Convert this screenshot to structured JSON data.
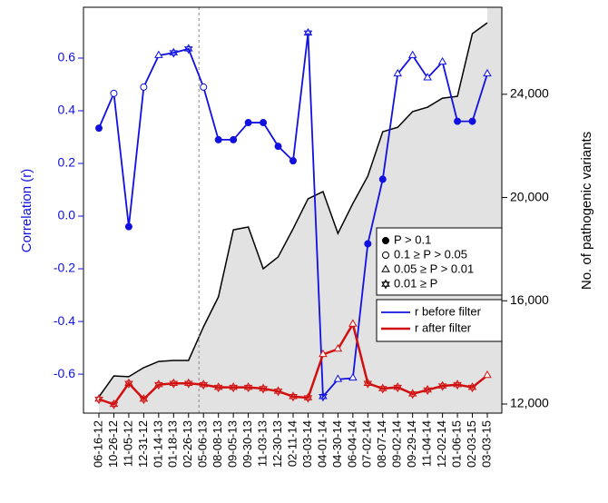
{
  "chart_data": {
    "type": "line",
    "ylabel": "Correlation (r)",
    "y2label": "No. of pathogenic variants",
    "categories": [
      "06-16-12",
      "10-26-12",
      "11-05-12",
      "12-31-12",
      "01-14-13",
      "01-18-13",
      "02-26-13",
      "05-06-13",
      "08-08-13",
      "09-05-13",
      "09-30-13",
      "11-03-13",
      "12-30-13",
      "02-11-14",
      "03-03-14",
      "04-01-14",
      "04-30-14",
      "06-04-14",
      "07-02-14",
      "08-07-14",
      "09-02-14",
      "09-29-14",
      "11-04-14",
      "12-02-14",
      "01-06-15",
      "02-03-15",
      "03-03-15"
    ],
    "vline_at": "05-06-13",
    "series": [
      {
        "name": "r before filter",
        "color": "#1010e0",
        "axis": "y",
        "values": [
          0.334,
          0.466,
          -0.04,
          0.49,
          0.61,
          0.62,
          0.635,
          0.49,
          0.29,
          0.29,
          0.355,
          0.355,
          0.265,
          0.21,
          0.695,
          -0.685,
          -0.62,
          -0.615,
          -0.105,
          0.14,
          0.54,
          0.61,
          0.525,
          0.585,
          0.36,
          0.36,
          0.54
        ],
        "markers": [
          "dot",
          "circle",
          "dot",
          "circle",
          "triangle",
          "star",
          "star",
          "circle",
          "dot",
          "dot",
          "dot",
          "dot",
          "dot",
          "dot",
          "star",
          "star",
          "triangle",
          "triangle",
          "dot",
          "dot",
          "triangle",
          "triangle",
          "triangle",
          "triangle",
          "dot",
          "dot",
          "triangle"
        ]
      },
      {
        "name": "r after filter",
        "color": "#d01010",
        "axis": "y",
        "values": [
          -0.695,
          -0.715,
          -0.635,
          -0.695,
          -0.64,
          -0.635,
          -0.635,
          -0.64,
          -0.65,
          -0.65,
          -0.65,
          -0.655,
          -0.665,
          -0.685,
          -0.69,
          -0.525,
          -0.505,
          -0.41,
          -0.635,
          -0.655,
          -0.65,
          -0.675,
          -0.66,
          -0.645,
          -0.64,
          -0.65,
          -0.605
        ],
        "markers": [
          "star",
          "star",
          "star",
          "star",
          "star",
          "star",
          "star",
          "star",
          "star",
          "star",
          "star",
          "star",
          "star",
          "star",
          "star",
          "triangle",
          "triangle",
          "triangle",
          "star",
          "star",
          "star",
          "star",
          "star",
          "star",
          "star",
          "star",
          "triangle"
        ]
      }
    ],
    "area": {
      "color": "#e2e2e2",
      "axis": "y2",
      "values": [
        12280,
        13090,
        13060,
        13410,
        13650,
        13690,
        13690,
        14990,
        16150,
        18750,
        18860,
        17240,
        17700,
        18790,
        19950,
        20230,
        18610,
        19770,
        20830,
        22550,
        22720,
        23330,
        23500,
        23850,
        23920,
        26350,
        26770
      ]
    },
    "ylim": [
      -0.748,
      0.793
    ],
    "yticks": [
      -0.6,
      -0.4,
      -0.2,
      {
        "value": 0,
        "label": "0.0"
      },
      0.2,
      0.4,
      0.6
    ],
    "y2lim": [
      11648,
      27371
    ],
    "y2ticks": [
      {
        "value": 12000,
        "label": "12,000"
      },
      {
        "value": 16000,
        "label": "16,000"
      },
      {
        "value": 20000,
        "label": "20,000"
      },
      {
        "value": 24000,
        "label": "24,000"
      }
    ],
    "marker_legend": [
      {
        "label": "P > 0.1",
        "marker": "dot"
      },
      {
        "label": "0.1 ≥ P > 0.05",
        "marker": "circle"
      },
      {
        "label": "0.05 ≥ P > 0.01",
        "marker": "triangle"
      },
      {
        "label": "0.01 ≥ P",
        "marker": "star"
      }
    ],
    "axis_color": "#1010e0"
  }
}
